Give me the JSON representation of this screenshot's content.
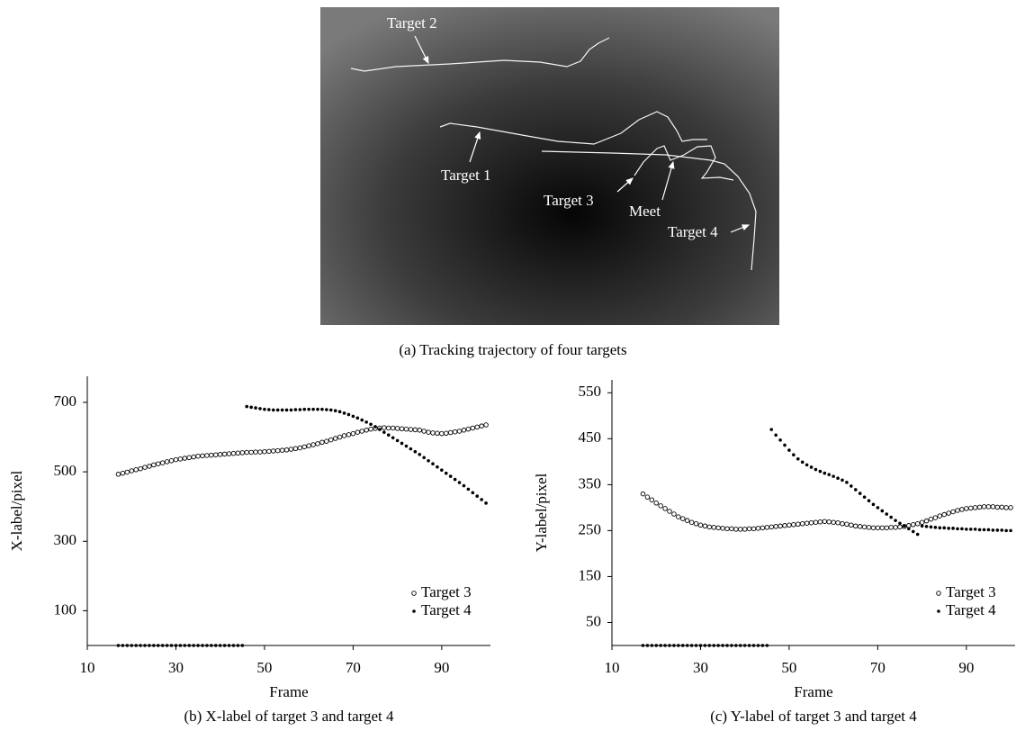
{
  "image_panel": {
    "labels": [
      "Target 2",
      "Target 1",
      "Target 3",
      "Meet",
      "Target 4"
    ],
    "caption": "(a) Tracking trajectory of four targets"
  },
  "chart_data": [
    {
      "type": "scatter",
      "caption": "(b) X-label of target 3 and target 4",
      "x_label": "Frame",
      "y_label": "X-label/pixel",
      "x": [
        17,
        18,
        19,
        20,
        21,
        22,
        23,
        24,
        25,
        26,
        27,
        28,
        29,
        30,
        31,
        32,
        33,
        34,
        35,
        36,
        37,
        38,
        39,
        40,
        41,
        42,
        43,
        44,
        45,
        46,
        47,
        48,
        49,
        50,
        51,
        52,
        53,
        54,
        55,
        56,
        57,
        58,
        59,
        60,
        61,
        62,
        63,
        64,
        65,
        66,
        67,
        68,
        69,
        70,
        71,
        72,
        73,
        74,
        75,
        76,
        77,
        78,
        79,
        80,
        81,
        82,
        83,
        84,
        85,
        86,
        87,
        88,
        89,
        90,
        91,
        92,
        93,
        94,
        95,
        96,
        97,
        98,
        99,
        100
      ],
      "series": [
        {
          "name": "Target 3",
          "color": "#000000",
          "marker": "circle-open",
          "values": [
            493,
            496,
            499,
            503,
            506,
            509,
            513,
            516,
            520,
            523,
            526,
            529,
            532,
            535,
            537,
            539,
            541,
            543,
            545,
            546,
            547,
            548,
            549,
            550,
            551,
            552,
            553,
            554,
            555,
            556,
            556,
            557,
            557,
            558,
            559,
            560,
            561,
            562,
            563,
            565,
            567,
            569,
            572,
            575,
            578,
            581,
            585,
            588,
            592,
            596,
            600,
            604,
            607,
            610,
            614,
            617,
            620,
            623,
            625,
            626,
            627,
            626,
            626,
            625,
            624,
            623,
            622,
            621,
            620,
            617,
            614,
            612,
            611,
            610,
            611,
            613,
            615,
            617,
            620,
            623,
            626,
            629,
            632,
            635
          ]
        },
        {
          "name": "Target 4",
          "color": "#000000",
          "marker": "dot",
          "values": [
            0,
            0,
            0,
            0,
            0,
            0,
            0,
            0,
            0,
            0,
            0,
            0,
            0,
            0,
            0,
            0,
            0,
            0,
            0,
            0,
            0,
            0,
            0,
            0,
            0,
            0,
            0,
            0,
            0,
            688,
            686,
            684,
            682,
            680,
            679,
            678,
            678,
            678,
            678,
            678,
            679,
            679,
            680,
            680,
            680,
            680,
            680,
            679,
            678,
            676,
            673,
            669,
            665,
            660,
            655,
            649,
            643,
            637,
            630,
            622,
            614,
            606,
            598,
            590,
            582,
            574,
            566,
            558,
            550,
            541,
            532,
            523,
            514,
            505,
            496,
            487,
            478,
            469,
            460,
            450,
            440,
            430,
            420,
            410
          ]
        }
      ],
      "xlim": [
        10,
        101
      ],
      "xticks": [
        10,
        30,
        50,
        70,
        90
      ],
      "ylim": [
        0,
        775
      ],
      "yticks": [
        100,
        300,
        500,
        700
      ],
      "legend": "lower right"
    },
    {
      "type": "scatter",
      "caption": "(c) Y-label of target 3 and target 4",
      "x_label": "Frame",
      "y_label": "Y-label/pixel",
      "x": [
        17,
        18,
        19,
        20,
        21,
        22,
        23,
        24,
        25,
        26,
        27,
        28,
        29,
        30,
        31,
        32,
        33,
        34,
        35,
        36,
        37,
        38,
        39,
        40,
        41,
        42,
        43,
        44,
        45,
        46,
        47,
        48,
        49,
        50,
        51,
        52,
        53,
        54,
        55,
        56,
        57,
        58,
        59,
        60,
        61,
        62,
        63,
        64,
        65,
        66,
        67,
        68,
        69,
        70,
        71,
        72,
        73,
        74,
        75,
        76,
        77,
        78,
        79,
        80,
        81,
        82,
        83,
        84,
        85,
        86,
        87,
        88,
        89,
        90,
        91,
        92,
        93,
        94,
        95,
        96,
        97,
        98,
        99,
        100
      ],
      "series": [
        {
          "name": "Target 3",
          "color": "#000000",
          "marker": "circle-open",
          "values": [
            330,
            323,
            317,
            310,
            304,
            298,
            292,
            286,
            280,
            276,
            272,
            268,
            265,
            262,
            260,
            258,
            257,
            256,
            255,
            254,
            254,
            253,
            253,
            253,
            254,
            254,
            255,
            256,
            257,
            258,
            259,
            260,
            261,
            262,
            263,
            264,
            265,
            266,
            267,
            268,
            269,
            270,
            269,
            268,
            267,
            265,
            264,
            262,
            260,
            259,
            258,
            257,
            256,
            256,
            256,
            256,
            257,
            257,
            258,
            259,
            261,
            263,
            265,
            268,
            271,
            275,
            278,
            282,
            285,
            288,
            291,
            294,
            296,
            298,
            299,
            300,
            301,
            302,
            302,
            302,
            301,
            301,
            300,
            300
          ]
        },
        {
          "name": "Target 4",
          "color": "#000000",
          "marker": "dot",
          "values": [
            0,
            0,
            0,
            0,
            0,
            0,
            0,
            0,
            0,
            0,
            0,
            0,
            0,
            0,
            0,
            0,
            0,
            0,
            0,
            0,
            0,
            0,
            0,
            0,
            0,
            0,
            0,
            0,
            0,
            470,
            458,
            447,
            436,
            425,
            415,
            406,
            399,
            393,
            388,
            383,
            379,
            375,
            372,
            368,
            364,
            360,
            355,
            347,
            339,
            331,
            323,
            315,
            307,
            300,
            293,
            286,
            279,
            272,
            266,
            260,
            254,
            248,
            242,
            260,
            259,
            258,
            257,
            256,
            256,
            255,
            255,
            254,
            254,
            253,
            253,
            253,
            252,
            252,
            252,
            251,
            251,
            251,
            250,
            250
          ]
        }
      ],
      "xlim": [
        10,
        101
      ],
      "xticks": [
        10,
        30,
        50,
        70,
        90
      ],
      "ylim": [
        0,
        578
      ],
      "yticks": [
        50,
        150,
        250,
        350,
        450,
        550
      ],
      "legend": "lower right"
    }
  ]
}
